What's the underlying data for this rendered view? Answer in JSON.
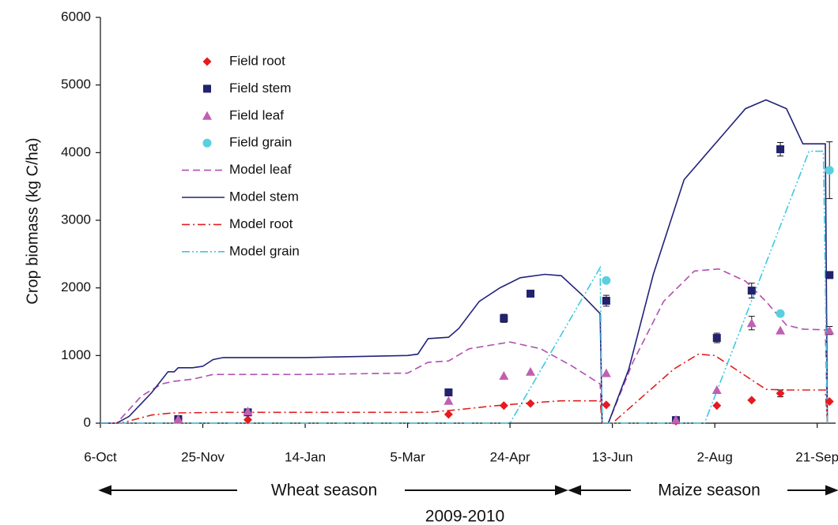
{
  "chart_data": {
    "type": "scatter",
    "y_label": "Crop biomass (kg C/ha)",
    "annotations": [
      "Wheat season",
      "Maize season",
      "2009-2010"
    ],
    "xlim": [
      0,
      359
    ],
    "xticks": [
      {
        "value": 0,
        "label": "6-Oct"
      },
      {
        "value": 50,
        "label": "25-Nov"
      },
      {
        "value": 100,
        "label": "14-Jan"
      },
      {
        "value": 150,
        "label": "5-Mar"
      },
      {
        "value": 200,
        "label": "24-Apr"
      },
      {
        "value": 250,
        "label": "13-Jun"
      },
      {
        "value": 300,
        "label": "2-Aug"
      },
      {
        "value": 350,
        "label": "21-Sep"
      }
    ],
    "ylim": [
      0,
      6000
    ],
    "yticks": [
      0,
      1000,
      2000,
      3000,
      4000,
      5000,
      6000
    ],
    "grid": false,
    "legend": "upper-left",
    "series": [
      {
        "name": "Field root",
        "mark": "points",
        "marker": "diamond",
        "color": "#e8191f",
        "x": [
          38,
          72,
          170,
          197,
          210,
          247,
          281,
          301,
          318,
          332,
          356
        ],
        "values": [
          60,
          50,
          130,
          260,
          290,
          270,
          30,
          260,
          340,
          440,
          320
        ],
        "errors": [
          null,
          null,
          null,
          null,
          null,
          null,
          null,
          null,
          null,
          50,
          null
        ]
      },
      {
        "name": "Field stem",
        "mark": "points",
        "marker": "square",
        "color": "#22226e",
        "x": [
          38,
          72,
          170,
          197,
          210,
          247,
          281,
          301,
          318,
          332,
          356
        ],
        "values": [
          60,
          160,
          455,
          1550,
          1915,
          1810,
          45,
          1260,
          1960,
          4050,
          2190
        ],
        "errors": [
          null,
          null,
          null,
          60,
          null,
          80,
          null,
          70,
          110,
          100,
          null
        ]
      },
      {
        "name": "Field leaf",
        "mark": "points",
        "marker": "triangle",
        "color": "#c060b0",
        "x": [
          38,
          72,
          170,
          197,
          210,
          247,
          281,
          301,
          318,
          332,
          356
        ],
        "values": [
          60,
          175,
          330,
          700,
          760,
          740,
          50,
          490,
          1480,
          1370,
          1370
        ],
        "errors": [
          null,
          null,
          null,
          null,
          null,
          null,
          null,
          null,
          100,
          null,
          60
        ]
      },
      {
        "name": "Field grain",
        "mark": "points",
        "marker": "circle",
        "color": "#5bcfe0",
        "x": [
          247,
          332,
          356
        ],
        "values": [
          2110,
          1620,
          3740
        ],
        "errors": [
          null,
          null,
          420
        ]
      },
      {
        "name": "Model leaf",
        "mark": "line",
        "dash": "9,5",
        "color": "#b050b0",
        "x": [
          0,
          8,
          20,
          30,
          36,
          45,
          55,
          100,
          150,
          160,
          170,
          180,
          200,
          215,
          230,
          244,
          245,
          248,
          260,
          275,
          290,
          302,
          315,
          325,
          335,
          343,
          354,
          355
        ],
        "values": [
          0,
          0,
          400,
          580,
          620,
          650,
          720,
          720,
          740,
          900,
          920,
          1100,
          1200,
          1100,
          850,
          580,
          0,
          0,
          900,
          1800,
          2250,
          2280,
          2100,
          1800,
          1450,
          1390,
          1380,
          0
        ]
      },
      {
        "name": "Model stem",
        "mark": "line",
        "dash": "none",
        "color": "#22227a",
        "x": [
          0,
          8,
          14,
          25,
          33,
          36,
          38,
          45,
          50,
          55,
          60,
          100,
          150,
          155,
          160,
          170,
          175,
          185,
          195,
          205,
          217,
          225,
          235,
          244,
          245,
          248,
          258,
          270,
          285,
          305,
          315,
          325,
          335,
          343,
          354,
          355
        ],
        "values": [
          0,
          0,
          100,
          450,
          760,
          760,
          820,
          820,
          840,
          940,
          970,
          970,
          1000,
          1020,
          1250,
          1270,
          1400,
          1800,
          2000,
          2150,
          2200,
          2180,
          1900,
          1620,
          0,
          0,
          800,
          2200,
          3600,
          4300,
          4650,
          4780,
          4650,
          4130,
          4130,
          0
        ]
      },
      {
        "name": "Model root",
        "mark": "line",
        "dash": "10,4,2,4",
        "color": "#e02020",
        "x": [
          0,
          10,
          25,
          35,
          60,
          160,
          175,
          190,
          210,
          225,
          244,
          245,
          250,
          265,
          280,
          292,
          300,
          315,
          325,
          335,
          354,
          355
        ],
        "values": [
          0,
          0,
          120,
          150,
          160,
          160,
          200,
          250,
          300,
          330,
          330,
          0,
          0,
          400,
          800,
          1020,
          1000,
          700,
          500,
          490,
          490,
          0
        ]
      },
      {
        "name": "Model grain",
        "mark": "line",
        "dash": "10,3,2,3,2,3",
        "color": "#40c8e0",
        "x": [
          0,
          200,
          244,
          245,
          295,
          346,
          353,
          355
        ],
        "values": [
          0,
          0,
          2300,
          0,
          0,
          4020,
          4020,
          0
        ]
      }
    ]
  }
}
